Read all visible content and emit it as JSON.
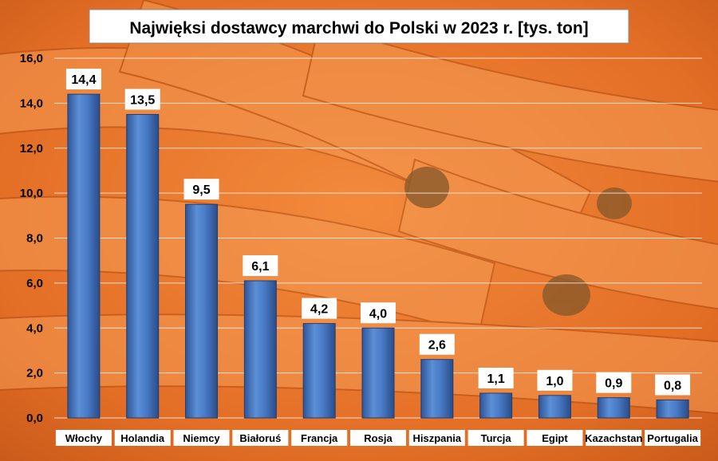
{
  "chart_data": {
    "type": "bar",
    "title": "Najwięksi dostawcy marchwi do Polski w 2023 r. [tys. ton]",
    "xlabel": "",
    "ylabel": "",
    "ylim": [
      0,
      16
    ],
    "yticks": [
      "0,0",
      "2,0",
      "4,0",
      "6,0",
      "8,0",
      "10,0",
      "12,0",
      "14,0",
      "16,0"
    ],
    "grid": true,
    "legend": "none",
    "categories": [
      "Włochy",
      "Holandia",
      "Niemcy",
      "Białoruś",
      "Francja",
      "Rosja",
      "Hiszpania",
      "Turcja",
      "Egipt",
      "Kazachstan",
      "Portugalia"
    ],
    "values": [
      14.4,
      13.5,
      9.5,
      6.1,
      4.2,
      4.0,
      2.6,
      1.1,
      1.0,
      0.9,
      0.8
    ],
    "value_labels": [
      "14,4",
      "13,5",
      "9,5",
      "6,1",
      "4,2",
      "4,0",
      "2,6",
      "1,1",
      "1,0",
      "0,9",
      "0,8"
    ],
    "colors": {
      "bar": "#4472c4",
      "background": "#e8722a"
    }
  }
}
